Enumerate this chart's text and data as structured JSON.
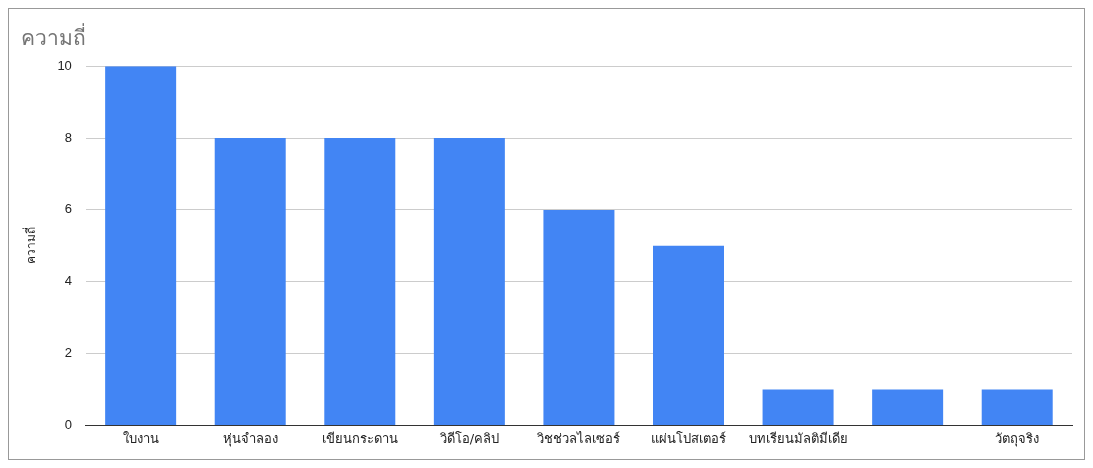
{
  "chart_data": {
    "type": "bar",
    "title": "ความถี่",
    "ylabel": "ความถี่",
    "categories": [
      "ใบงาน",
      "หุ่นจำลอง",
      "เขียนกระดาน",
      "วิดีโอ/คลิป",
      "วิชช่วลไลเซอร์",
      "แผ่นโปสเตอร์",
      "บทเรียนมัลติมีเดีย",
      null,
      "วัตถุจริง"
    ],
    "values": [
      10,
      8,
      8,
      8,
      6,
      5,
      1,
      1,
      1
    ],
    "color": "#4285f4",
    "ylim": [
      0,
      10
    ],
    "yticks": [
      0,
      2,
      4,
      6,
      8,
      10
    ],
    "grid": "y",
    "legend": false
  }
}
